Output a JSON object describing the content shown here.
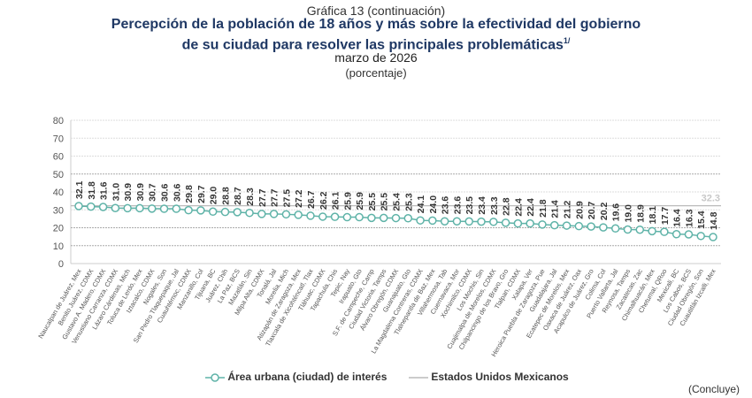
{
  "header": {
    "graphic_label": "Gráfica 13 (continuación)",
    "title_line1": "Percepción de la población de 18 años y más sobre la efectividad del gobierno",
    "title_line2": "de su ciudad para resolver las principales problemáticas",
    "footnote_mark": "1/",
    "period": "marzo de 2026",
    "unit": "(porcentaje)"
  },
  "chart_data": {
    "type": "line",
    "ylim": [
      0,
      80
    ],
    "yticks": [
      0,
      10,
      20,
      30,
      40,
      50,
      60,
      70,
      80
    ],
    "grid": true,
    "legend_placement": "bottom",
    "categories": [
      "Naucalpan de Juárez, Mex",
      "Benito Juárez, CDMX",
      "Gustavo A. Madero, CDMX",
      "Venustiano Carranza, CDMX",
      "Lázaro Cárdenas, Mich",
      "Toluca de Lerdo, Mex",
      "Iztacalco, CDMX",
      "Nogales, Son",
      "San Pedro Tlaquepaque, Jal",
      "Cuauhtémoc, CDMX",
      "Manzanillo, Col",
      "Tijuana, BC",
      "Juárez, Chih",
      "La Paz, BCS",
      "Mazatlán, Sin",
      "Milpa Alta, CDMX",
      "Tonalá, Jal",
      "Morelia, Mich",
      "Atizapán de Zaragoza, Mex",
      "Tlaxcala de Xicohténcatl, Tlax",
      "Tláhuac, CDMX",
      "Tapachula, Chis",
      "Tepic, Nay",
      "Irapuato, Gto",
      "S.F. de Campeche, Camp",
      "Ciudad Victoria, Tamps",
      "Álvaro Obregón, CDMX",
      "Guanajuato, Gto",
      "La Magdalena Contreras, CDMX",
      "Tlalnepantla de Baz, Mex",
      "Villahermosa, Tab",
      "Cuernavaca, Mor",
      "Xochimilco, CDMX",
      "Los Mochis, Sin",
      "Cuajimalpa de Morelos, CDMX",
      "Chilpancingo de los Bravo, Gro",
      "Tlalpan, CDMX",
      "Xalapa, Ver",
      "Heroica Puebla de Zaragoza, Pue",
      "Guadalajara, Jal",
      "Ecatepec de Morelos, Mex",
      "Oaxaca de Juárez, Oax",
      "Acapulco de Juárez, Gro",
      "Colima, Col",
      "Puerto Vallarta, Jal",
      "Reynosa, Tamps",
      "Zacatecas, Zac",
      "Chimalhuacán, Mex",
      "Chetumal, QRoo",
      "Mexicali, BC",
      "Los Cabos, BCS",
      "Ciudad Obregón, Son",
      "Cuautitlán Izcalli, Mex"
    ],
    "series": [
      {
        "name": "Área urbana (ciudad) de interés",
        "color": "#5fb3a8",
        "values": [
          32.1,
          31.8,
          31.6,
          31.0,
          30.9,
          30.9,
          30.7,
          30.6,
          30.6,
          29.8,
          29.7,
          29.0,
          28.8,
          28.7,
          28.3,
          27.7,
          27.7,
          27.5,
          27.2,
          26.7,
          26.2,
          26.1,
          25.9,
          25.9,
          25.5,
          25.5,
          25.4,
          25.3,
          24.1,
          24.0,
          23.6,
          23.6,
          23.5,
          23.4,
          23.3,
          22.8,
          22.4,
          22.4,
          21.8,
          21.4,
          21.2,
          20.9,
          20.7,
          20.2,
          19.6,
          19.0,
          18.9,
          18.1,
          17.7,
          16.4,
          16.3,
          15.4,
          14.8
        ]
      },
      {
        "name": "Estados Unidos Mexicanos",
        "color": "#bbbbbb",
        "value": 32.3,
        "label": "32.3"
      }
    ]
  },
  "footer": {
    "note": "(Concluye)"
  }
}
